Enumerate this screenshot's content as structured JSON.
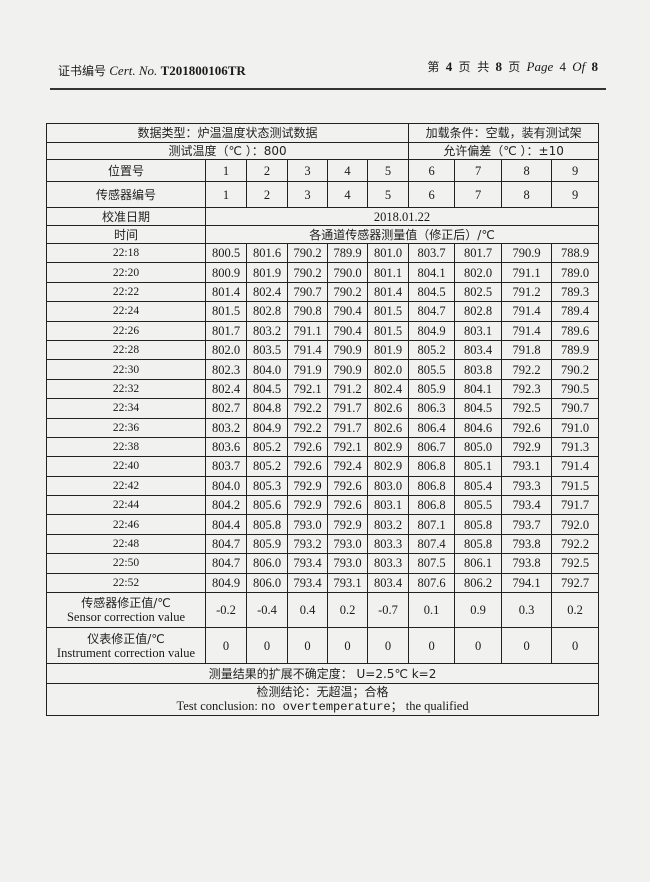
{
  "header": {
    "cert_label_cn": "证书编号",
    "cert_label_en": "Cert. No.",
    "cert_no": "T201800106TR",
    "page_cn_prefix": "第",
    "page_num": "4",
    "page_cn_mid": "页 共",
    "page_total": "8",
    "page_cn_suffix": "页",
    "page_en": "Page",
    "page_en_of": "Of"
  },
  "table": {
    "data_type": "数据类型：炉温温度状态测试数据",
    "load_condition": "加载条件：空载，装有测试架",
    "test_temp": "测试温度（℃ ）：800",
    "tolerance": "允许偏差（℃ ）：±10",
    "position_label": "位置号",
    "positions": [
      "1",
      "2",
      "3",
      "4",
      "5",
      "6",
      "7",
      "8",
      "9"
    ],
    "sensor_label": "传感器编号",
    "sensors": [
      "1",
      "2",
      "3",
      "4",
      "5",
      "6",
      "7",
      "8",
      "9"
    ],
    "calib_date_label": "校准日期",
    "calib_date": "2018.01.22",
    "time_label": "时间",
    "measure_label": "各通道传感器测量值（修正后）/℃",
    "rows": [
      {
        "time": "22:18",
        "values": [
          "800.5",
          "801.6",
          "790.2",
          "789.9",
          "801.0",
          "803.7",
          "801.7",
          "790.9",
          "788.9"
        ]
      },
      {
        "time": "22:20",
        "values": [
          "800.9",
          "801.9",
          "790.2",
          "790.0",
          "801.1",
          "804.1",
          "802.0",
          "791.1",
          "789.0"
        ]
      },
      {
        "time": "22:22",
        "values": [
          "801.4",
          "802.4",
          "790.7",
          "790.2",
          "801.4",
          "804.5",
          "802.5",
          "791.2",
          "789.3"
        ]
      },
      {
        "time": "22:24",
        "values": [
          "801.5",
          "802.8",
          "790.8",
          "790.4",
          "801.5",
          "804.7",
          "802.8",
          "791.4",
          "789.4"
        ]
      },
      {
        "time": "22:26",
        "values": [
          "801.7",
          "803.2",
          "791.1",
          "790.4",
          "801.5",
          "804.9",
          "803.1",
          "791.4",
          "789.6"
        ]
      },
      {
        "time": "22:28",
        "values": [
          "802.0",
          "803.5",
          "791.4",
          "790.9",
          "801.9",
          "805.2",
          "803.4",
          "791.8",
          "789.9"
        ]
      },
      {
        "time": "22:30",
        "values": [
          "802.3",
          "804.0",
          "791.9",
          "790.9",
          "802.0",
          "805.5",
          "803.8",
          "792.2",
          "790.2"
        ]
      },
      {
        "time": "22:32",
        "values": [
          "802.4",
          "804.5",
          "792.1",
          "791.2",
          "802.4",
          "805.9",
          "804.1",
          "792.3",
          "790.5"
        ]
      },
      {
        "time": "22:34",
        "values": [
          "802.7",
          "804.8",
          "792.2",
          "791.7",
          "802.6",
          "806.3",
          "804.5",
          "792.5",
          "790.7"
        ]
      },
      {
        "time": "22:36",
        "values": [
          "803.2",
          "804.9",
          "792.2",
          "791.7",
          "802.6",
          "806.4",
          "804.6",
          "792.6",
          "791.0"
        ]
      },
      {
        "time": "22:38",
        "values": [
          "803.6",
          "805.2",
          "792.6",
          "792.1",
          "802.9",
          "806.7",
          "805.0",
          "792.9",
          "791.3"
        ]
      },
      {
        "time": "22:40",
        "values": [
          "803.7",
          "805.2",
          "792.6",
          "792.4",
          "802.9",
          "806.8",
          "805.1",
          "793.1",
          "791.4"
        ]
      },
      {
        "time": "22:42",
        "values": [
          "804.0",
          "805.3",
          "792.9",
          "792.6",
          "803.0",
          "806.8",
          "805.4",
          "793.3",
          "791.5"
        ]
      },
      {
        "time": "22:44",
        "values": [
          "804.2",
          "805.6",
          "792.9",
          "792.6",
          "803.1",
          "806.8",
          "805.5",
          "793.4",
          "791.7"
        ]
      },
      {
        "time": "22:46",
        "values": [
          "804.4",
          "805.8",
          "793.0",
          "792.9",
          "803.2",
          "807.1",
          "805.8",
          "793.7",
          "792.0"
        ]
      },
      {
        "time": "22:48",
        "values": [
          "804.7",
          "805.9",
          "793.2",
          "793.0",
          "803.3",
          "807.4",
          "805.8",
          "793.8",
          "792.2"
        ]
      },
      {
        "time": "22:50",
        "values": [
          "804.7",
          "806.0",
          "793.4",
          "793.0",
          "803.3",
          "807.5",
          "806.1",
          "793.8",
          "792.5"
        ]
      },
      {
        "time": "22:52",
        "values": [
          "804.9",
          "806.0",
          "793.4",
          "793.1",
          "803.4",
          "807.6",
          "806.2",
          "794.1",
          "792.7"
        ]
      }
    ],
    "sensor_corr_label_cn": "传感器修正值/℃",
    "sensor_corr_label_en": "Sensor correction value",
    "sensor_corr": [
      "-0.2",
      "-0.4",
      "0.4",
      "0.2",
      "-0.7",
      "0.1",
      "0.9",
      "0.3",
      "0.2"
    ],
    "instr_corr_label_cn": "仪表修正值/℃",
    "instr_corr_label_en": "Instrument correction value",
    "instr_corr": [
      "0",
      "0",
      "0",
      "0",
      "0",
      "0",
      "0",
      "0",
      "0"
    ],
    "uncertainty": "测量结果的扩展不确定度：  U=2.5℃      k=2",
    "conclusion_cn": "检测结论：无超温；合格",
    "conclusion_en_prefix": "Test conclusion: ",
    "conclusion_en_mono": "no overtemperature；",
    "conclusion_en_suffix": " the qualified"
  }
}
